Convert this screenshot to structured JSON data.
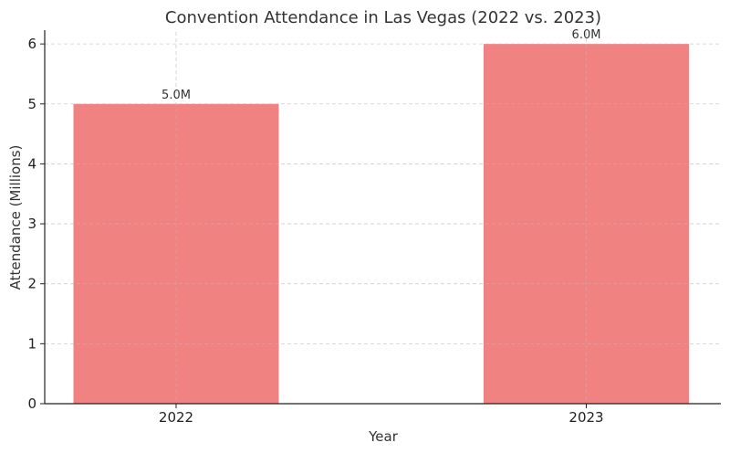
{
  "chart_data": {
    "type": "bar",
    "title": "Convention Attendance in Las Vegas (2022 vs. 2023)",
    "xlabel": "Year",
    "ylabel": "Attendance (Millions)",
    "categories": [
      "2022",
      "2023"
    ],
    "values": [
      5.0,
      6.0
    ],
    "data_labels": [
      "5.0M",
      "6.0M"
    ],
    "ylim": [
      0,
      6.2
    ],
    "yticks": [
      0,
      1,
      2,
      3,
      4,
      5,
      6
    ],
    "grid": true,
    "bar_color": "#f08080"
  }
}
